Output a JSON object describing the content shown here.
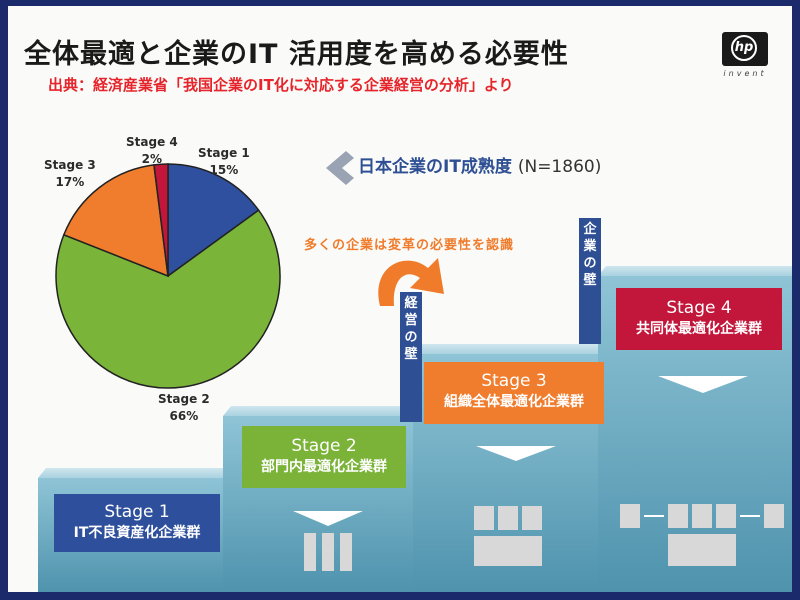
{
  "title": "全体最適と企業のIT 活用度を高める必要性",
  "source": "出典：経済産業省「我国企業のIT化に対応する企業経営の分析」より",
  "logo": {
    "text": "hp",
    "tagline": "invent"
  },
  "maturity_title": "日本企業のIT成熟度",
  "maturity_n": "(N=1860)",
  "recognition_text": "多くの企業は変革の必要性を認識",
  "walls": {
    "management": "経営の壁",
    "enterprise": "企業の壁"
  },
  "stages": [
    {
      "name": "Stage 1",
      "desc": "IT不良資産化企業群",
      "color": "#2d4f9c"
    },
    {
      "name": "Stage 2",
      "desc": "部門内最適化企業群",
      "color": "#7ab338"
    },
    {
      "name": "Stage 3",
      "desc": "組織全体最適化企業群",
      "color": "#f07d2d"
    },
    {
      "name": "Stage 4",
      "desc": "共同体最適化企業群",
      "color": "#c2163a"
    }
  ],
  "chart_data": {
    "type": "pie",
    "slices": [
      {
        "label": "Stage 1",
        "value": 15,
        "display": "15%",
        "color": "#2f4f9f"
      },
      {
        "label": "Stage 2",
        "value": 66,
        "display": "66%",
        "color": "#7ab53a"
      },
      {
        "label": "Stage 3",
        "value": 17,
        "display": "17%",
        "color": "#f07d2d"
      },
      {
        "label": "Stage 4",
        "value": 2,
        "display": "2%",
        "color": "#c2163a"
      }
    ]
  }
}
